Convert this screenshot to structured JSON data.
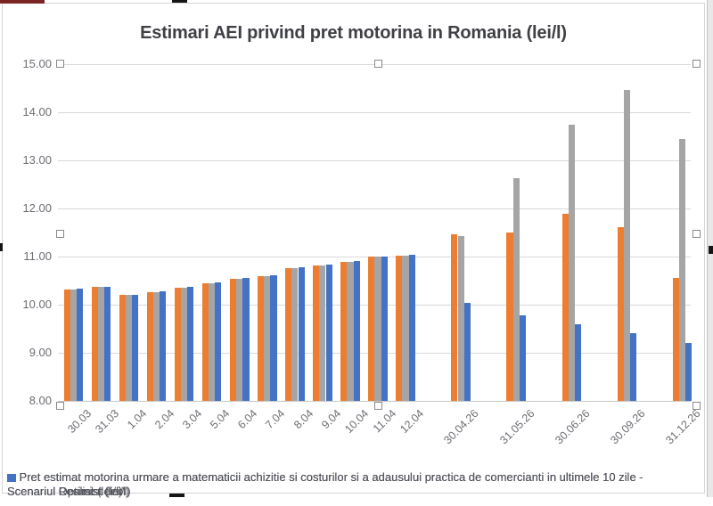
{
  "chart_data": {
    "type": "bar",
    "title": "Estimari AEI privind pret motorina in Romania (lei/l)",
    "categories": [
      "30.03",
      "31.03",
      "1.04",
      "2.04",
      "3.04",
      "5.04",
      "6.04",
      "7.04",
      "8.04",
      "9.04",
      "10.04",
      "11.04",
      "12.04",
      "30.04.26",
      "31.05.26",
      "30.06.26",
      "30.09.26",
      "31.12.26"
    ],
    "slots": [
      0,
      1,
      2,
      3,
      4,
      5,
      6,
      7,
      8,
      9,
      10,
      11,
      12,
      14,
      16,
      18,
      20,
      22
    ],
    "total_slots": 23,
    "ylim": [
      8,
      15
    ],
    "ytick_step": 1,
    "ytick_labels": [
      "15.00",
      "14.00",
      "13.00",
      "12.00",
      "11.00",
      "10.00",
      "9.00",
      "8.00"
    ],
    "grid": true,
    "legend_position": "bottom",
    "legend_common_text": "Pret estimat motorina urmare a matematicii achizitie si costurilor si a adausului practica de comercianti in ultimele 10 zile -",
    "series": [
      {
        "key": "realist",
        "name": "Scenariul Realist (lei/l)",
        "color": "#ED7D31",
        "values": [
          10.32,
          10.37,
          10.2,
          10.26,
          10.36,
          10.44,
          10.54,
          10.6,
          10.76,
          10.82,
          10.89,
          11.0,
          11.02,
          11.46,
          11.5,
          11.89,
          11.61,
          10.56
        ]
      },
      {
        "key": "pesimist",
        "name": "Scenariul Pesimist (lei/l)",
        "color": "#A5A5A5",
        "values": [
          10.32,
          10.37,
          10.2,
          10.26,
          10.36,
          10.44,
          10.54,
          10.6,
          10.76,
          10.82,
          10.89,
          11.0,
          11.02,
          11.42,
          12.63,
          13.75,
          14.47,
          13.44
        ]
      },
      {
        "key": "optimist",
        "name": "Scenariul Optimist (lei/l)",
        "color": "#4472C4",
        "values": [
          10.34,
          10.38,
          10.21,
          10.27,
          10.38,
          10.46,
          10.56,
          10.62,
          10.78,
          10.84,
          10.91,
          11.01,
          11.03,
          10.04,
          9.77,
          9.6,
          9.41,
          9.21
        ]
      }
    ],
    "colors": {
      "gridline": "#d9d9d9",
      "axis_text": "#6d6d74",
      "title_text": "#3f4045",
      "legend_text": "#54555e",
      "selection_handle_border": "#8a8a8a",
      "chart_border": "#d4d4d4",
      "right_strip": "#e8e8e8",
      "topleft_artifact": "#7a2424"
    }
  }
}
